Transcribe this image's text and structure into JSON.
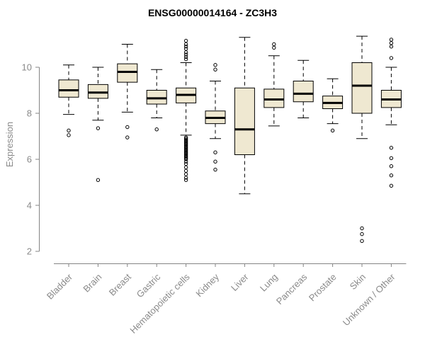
{
  "chart_data": {
    "type": "boxplot",
    "title": "ENSG00000014164 - ZC3H3",
    "ylabel": "Expression",
    "yticks": [
      2,
      4,
      6,
      8,
      10
    ],
    "ylim": [
      1.5,
      11.6
    ],
    "grid": false,
    "legend": "none",
    "categories": [
      "Bladder",
      "Brain",
      "Breast",
      "Gastric",
      "Hematopoietic cells",
      "Kidney",
      "Liver",
      "Lung",
      "Pancreas",
      "Prostate",
      "Skin",
      "Unknown / Other"
    ],
    "series": [
      {
        "label": "Bladder",
        "low": 7.95,
        "q1": 8.7,
        "median": 9.0,
        "q3": 9.45,
        "high": 10.1,
        "outliers": [
          7.25,
          7.05
        ]
      },
      {
        "label": "Brain",
        "low": 7.7,
        "q1": 8.65,
        "median": 8.9,
        "q3": 9.25,
        "high": 10.0,
        "outliers": [
          7.35,
          5.1
        ]
      },
      {
        "label": "Breast",
        "low": 8.05,
        "q1": 9.35,
        "median": 9.8,
        "q3": 10.15,
        "high": 11.0,
        "outliers": [
          7.4,
          6.95
        ]
      },
      {
        "label": "Gastric",
        "low": 7.8,
        "q1": 8.4,
        "median": 8.65,
        "q3": 9.0,
        "high": 9.9,
        "outliers": [
          7.3
        ]
      },
      {
        "label": "Hematopoietic cells",
        "low": 7.05,
        "q1": 8.45,
        "median": 8.8,
        "q3": 9.1,
        "high": 10.2,
        "outliers": [
          11.15,
          11.0,
          10.9,
          10.8,
          10.65,
          10.55,
          10.45,
          10.35,
          6.95,
          6.9,
          6.85,
          6.8,
          6.75,
          6.7,
          6.65,
          6.6,
          6.55,
          6.5,
          6.45,
          6.4,
          6.35,
          6.3,
          6.25,
          6.2,
          6.15,
          6.1,
          6.05,
          6.0,
          5.9,
          5.8,
          5.65,
          5.5,
          5.35,
          5.2,
          5.1
        ]
      },
      {
        "label": "Kidney",
        "low": 6.9,
        "q1": 7.55,
        "median": 7.8,
        "q3": 8.1,
        "high": 9.4,
        "outliers": [
          10.1,
          9.9,
          6.3,
          5.9,
          5.55
        ]
      },
      {
        "label": "Liver",
        "low": 4.5,
        "q1": 6.2,
        "median": 7.3,
        "q3": 9.1,
        "high": 11.3,
        "outliers": []
      },
      {
        "label": "Lung",
        "low": 7.45,
        "q1": 8.25,
        "median": 8.6,
        "q3": 9.05,
        "high": 10.5,
        "outliers": [
          11.0,
          10.85
        ]
      },
      {
        "label": "Pancreas",
        "low": 7.8,
        "q1": 8.5,
        "median": 8.85,
        "q3": 9.4,
        "high": 10.3,
        "outliers": []
      },
      {
        "label": "Prostate",
        "low": 7.55,
        "q1": 8.2,
        "median": 8.45,
        "q3": 8.75,
        "high": 9.5,
        "outliers": [
          7.25
        ]
      },
      {
        "label": "Skin",
        "low": 6.9,
        "q1": 8.0,
        "median": 9.2,
        "q3": 10.2,
        "high": 11.35,
        "outliers": [
          3.0,
          2.75,
          2.45
        ]
      },
      {
        "label": "Unknown / Other",
        "low": 7.5,
        "q1": 8.25,
        "median": 8.6,
        "q3": 9.0,
        "high": 10.0,
        "outliers": [
          11.2,
          11.05,
          10.9,
          10.4,
          6.5,
          6.05,
          5.7,
          5.3,
          4.85
        ]
      }
    ],
    "colors": {
      "box_fill": "#EFE8D1",
      "box_stroke": "#000000",
      "median": "#000000",
      "whisker": "#000000",
      "outlier": "#000000",
      "axis": "#848484",
      "tick_label": "#8a8a8a",
      "title": "#000000",
      "background": "#ffffff"
    }
  }
}
